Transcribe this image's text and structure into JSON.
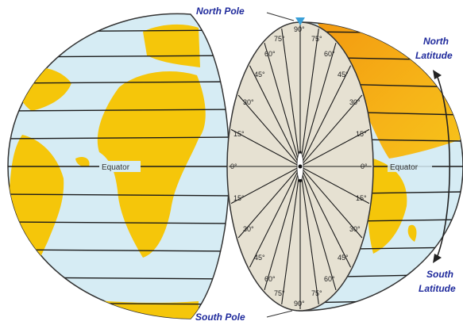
{
  "labels": {
    "north_pole": "North Pole",
    "south_pole": "South Pole",
    "north_latitude_line1": "North",
    "north_latitude_line2": "Latitude",
    "south_latitude_line1": "South",
    "south_latitude_line2": "Latitude",
    "equator_left": "Equator",
    "equator_right": "Equator"
  },
  "degree_labels": {
    "north": [
      "90°",
      "75°",
      "75°",
      "60°",
      "60°",
      "45°",
      "45°",
      "30°",
      "30°",
      "15°",
      "15°"
    ],
    "center": [
      "0°",
      "0°"
    ],
    "south": [
      "15°",
      "15°",
      "30°",
      "30°",
      "45°",
      "45°",
      "60°",
      "60°",
      "75°",
      "75°",
      "90°"
    ]
  },
  "colors": {
    "ocean": "#d6ecf4",
    "land": "#f5c60a",
    "land_orange": "#f19a12",
    "section_face": "#e6e1d2",
    "lines": "#1a1a1a",
    "label_blue": "#1f2a9c"
  }
}
